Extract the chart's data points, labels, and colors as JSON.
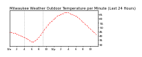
{
  "title": "Milwaukee Weather Outdoor Temperature per Minute (Last 24 Hours)",
  "title_fontsize": 3.8,
  "background_color": "#ffffff",
  "line_color": "#ff0000",
  "grid_color": "#999999",
  "vline_x": [
    4.0,
    9.0
  ],
  "ylim": [
    28,
    70
  ],
  "yticks": [
    30,
    35,
    40,
    45,
    50,
    55,
    60,
    65
  ],
  "ylabel_fontsize": 3.2,
  "xlabel_fontsize": 2.8,
  "time_hours": [
    0,
    0.5,
    1,
    1.5,
    2,
    2.5,
    3,
    3.5,
    4,
    4.5,
    5,
    5.5,
    6,
    6.5,
    7,
    7.5,
    8,
    8.5,
    9,
    9.5,
    10,
    10.5,
    11,
    11.5,
    12,
    12.5,
    13,
    13.5,
    14,
    14.5,
    15,
    15.5,
    16,
    16.5,
    17,
    17.5,
    18,
    18.5,
    19,
    19.5,
    20,
    20.5,
    21,
    21.5,
    22,
    22.5,
    23,
    23.5
  ],
  "temperatures": [
    44,
    44,
    43,
    43,
    42,
    41,
    40,
    39,
    38,
    37,
    36,
    34,
    33,
    33,
    34,
    36,
    38,
    41,
    44,
    47,
    50,
    53,
    55,
    57,
    59,
    61,
    63,
    64,
    65,
    66,
    67,
    67,
    67,
    66,
    65,
    64,
    63,
    62,
    60,
    58,
    56,
    54,
    52,
    50,
    48,
    46,
    44,
    42
  ],
  "x_tick_positions": [
    0,
    2,
    4,
    6,
    8,
    10,
    12,
    14,
    16,
    18,
    20,
    22
  ],
  "x_tick_labels": [
    "12a",
    "2",
    "4",
    "6",
    "8",
    "10",
    "12p",
    "2",
    "4",
    "6",
    "8",
    "10"
  ],
  "marker_size": 0.6,
  "line_width": 0.5
}
